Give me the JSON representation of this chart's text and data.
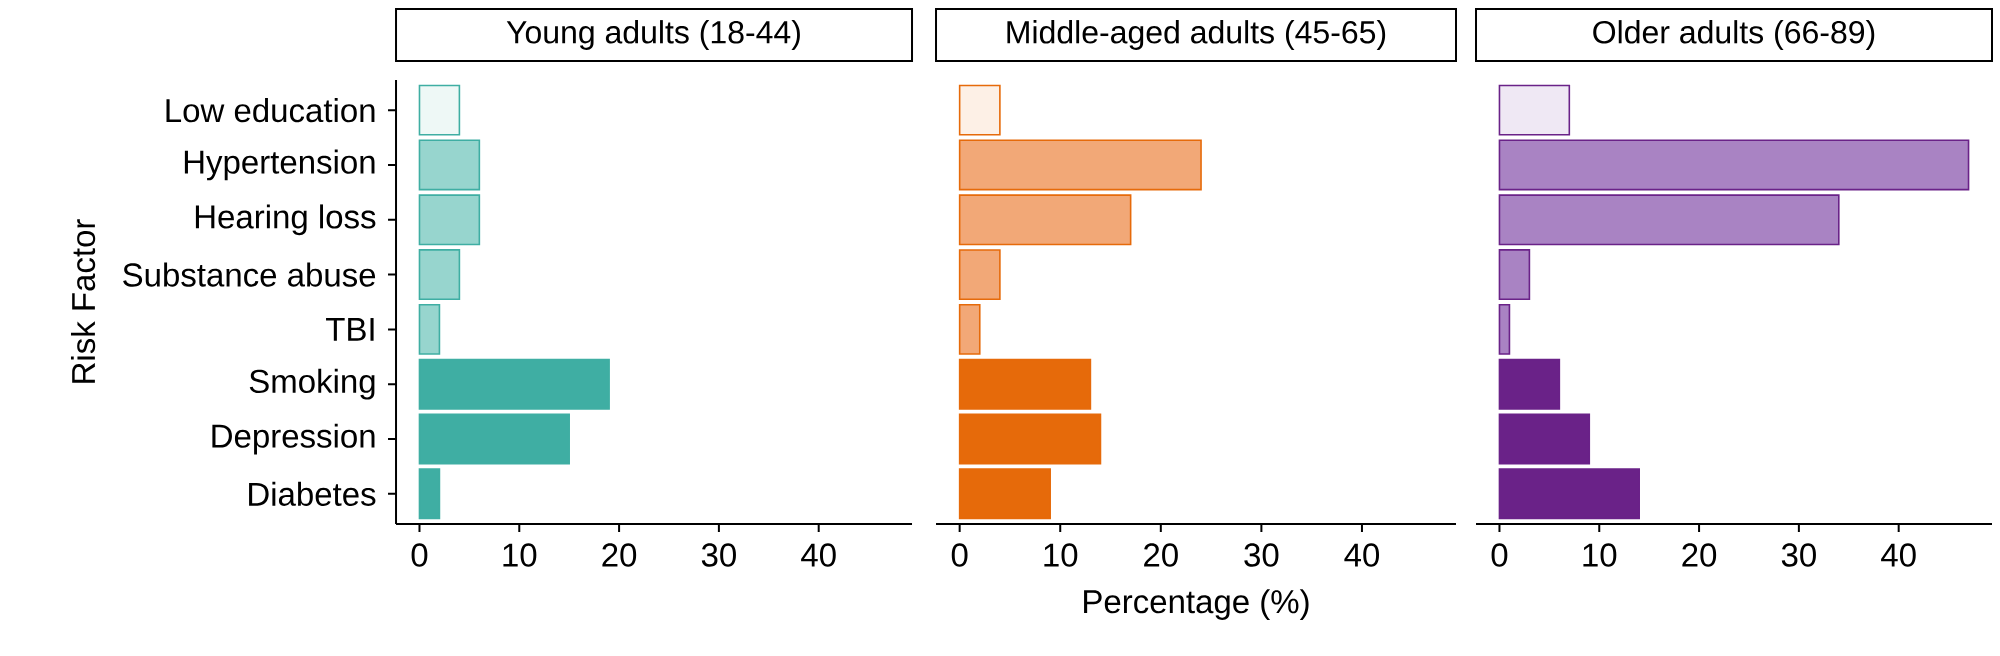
{
  "chart_data": [
    {
      "type": "bar",
      "orientation": "horizontal",
      "title": "Young adults (18-44)",
      "ylabel": "Risk Factor",
      "categories": [
        "Low education",
        "Hypertension",
        "Hearing loss",
        "Substance abuse",
        "TBI",
        "Smoking",
        "Depression",
        "Diabetes"
      ],
      "values": [
        4,
        6,
        6,
        4,
        2,
        19,
        15,
        2
      ],
      "colors": [
        "#eef8f6",
        "#97d5ce",
        "#97d5ce",
        "#97d5ce",
        "#97d5ce",
        "#3faea3",
        "#3faea3",
        "#3faea3"
      ],
      "xlim": [
        -2.35,
        49.35
      ],
      "xticks": [
        0,
        10,
        20,
        30,
        40
      ]
    },
    {
      "type": "bar",
      "orientation": "horizontal",
      "title": "Middle-aged adults (45-65)",
      "xlabel": "Percentage (%)",
      "categories": [
        null,
        null,
        null,
        null,
        null,
        null,
        null,
        null
      ],
      "values": [
        4,
        24,
        17,
        4,
        2,
        13,
        14,
        9
      ],
      "colors": [
        "#fdf0e6",
        "#f2a877",
        "#f2a877",
        "#f2a877",
        "#f2a877",
        "#e66a0a",
        "#e66a0a",
        "#e66a0a"
      ],
      "xlim": [
        -2.35,
        49.35
      ],
      "xticks": [
        0,
        10,
        20,
        30,
        40
      ],
      "tick_labels": "x"
    },
    {
      "type": "bar",
      "orientation": "horizontal",
      "title": "Older adults (66-89)",
      "categories": [
        null,
        null,
        null,
        null,
        null,
        null,
        null,
        null
      ],
      "values": [
        7,
        47,
        34,
        3,
        1,
        6,
        9,
        14
      ],
      "colors": [
        "#efe8f4",
        "#a983c3",
        "#a983c3",
        "#a983c3",
        "#a983c3",
        "#6a2288",
        "#6a2288",
        "#6a2288"
      ],
      "xlim": [
        -2.35,
        49.35
      ],
      "xticks": [
        0,
        10,
        20,
        30,
        40
      ],
      "tick_labels": "x"
    }
  ]
}
